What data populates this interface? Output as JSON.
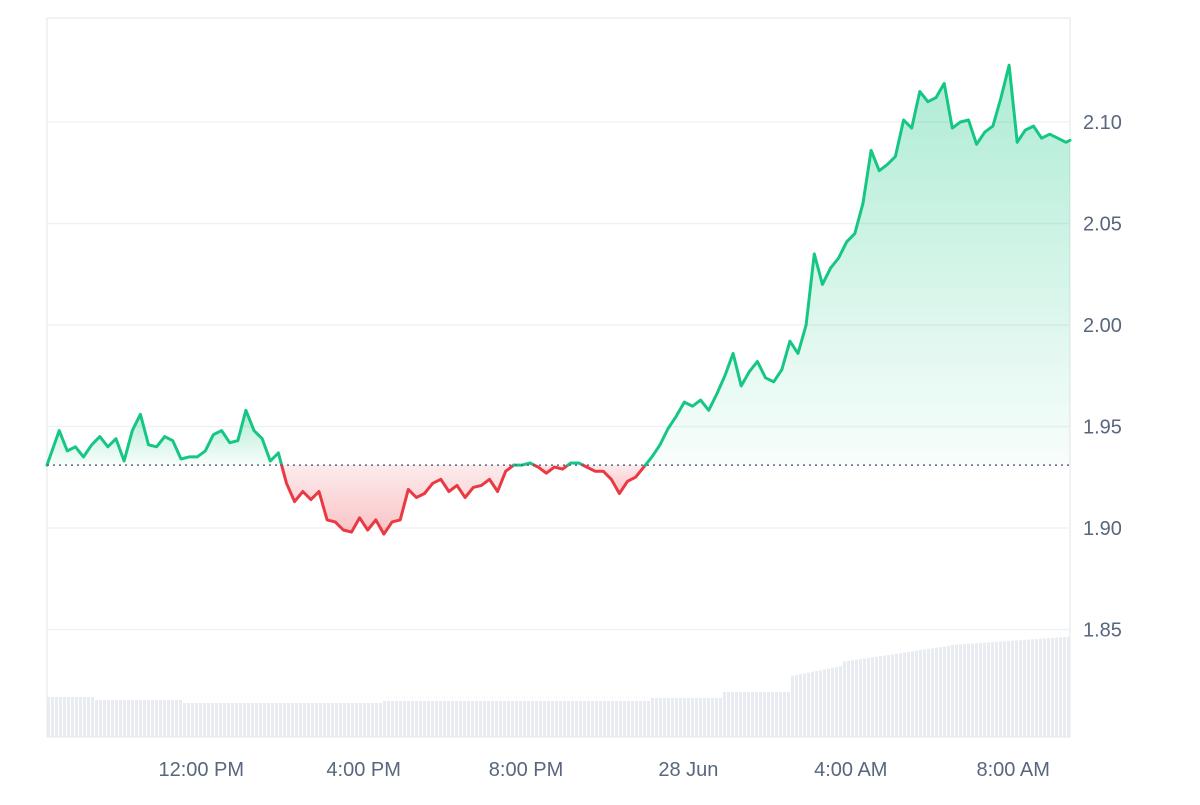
{
  "chart_data": {
    "type": "line",
    "title": "",
    "xlabel": "",
    "ylabel": "",
    "baseline": 1.931,
    "ylim": [
      1.8,
      2.15
    ],
    "y_ticks": [
      "2.10",
      "2.05",
      "2.00",
      "1.95",
      "1.90",
      "1.85"
    ],
    "y_tick_values": [
      2.1,
      2.05,
      2.0,
      1.95,
      1.9,
      1.85
    ],
    "x_ticks": [
      "12:00 PM",
      "4:00 PM",
      "8:00 PM",
      "28 Jun",
      "4:00 AM",
      "8:00 AM"
    ],
    "x_tick_hours": [
      12,
      16,
      20,
      24,
      28,
      32
    ],
    "x_range_hours": [
      8.2,
      33.4
    ],
    "series": [
      {
        "values": [
          [
            8.2,
            1.931
          ],
          [
            8.5,
            1.948
          ],
          [
            8.7,
            1.938
          ],
          [
            8.9,
            1.94
          ],
          [
            9.1,
            1.935
          ],
          [
            9.3,
            1.941
          ],
          [
            9.5,
            1.945
          ],
          [
            9.7,
            1.94
          ],
          [
            9.9,
            1.944
          ],
          [
            10.1,
            1.933
          ],
          [
            10.3,
            1.948
          ],
          [
            10.5,
            1.956
          ],
          [
            10.7,
            1.941
          ],
          [
            10.9,
            1.94
          ],
          [
            11.1,
            1.945
          ],
          [
            11.3,
            1.943
          ],
          [
            11.5,
            1.934
          ],
          [
            11.7,
            1.935
          ],
          [
            11.9,
            1.935
          ],
          [
            12.1,
            1.938
          ],
          [
            12.3,
            1.946
          ],
          [
            12.5,
            1.948
          ],
          [
            12.7,
            1.942
          ],
          [
            12.9,
            1.943
          ],
          [
            13.1,
            1.958
          ],
          [
            13.3,
            1.948
          ],
          [
            13.5,
            1.944
          ],
          [
            13.7,
            1.933
          ],
          [
            13.9,
            1.937
          ],
          [
            14.1,
            1.922
          ],
          [
            14.3,
            1.913
          ],
          [
            14.5,
            1.918
          ],
          [
            14.7,
            1.914
          ],
          [
            14.9,
            1.918
          ],
          [
            15.1,
            1.904
          ],
          [
            15.3,
            1.903
          ],
          [
            15.5,
            1.899
          ],
          [
            15.7,
            1.898
          ],
          [
            15.9,
            1.905
          ],
          [
            16.1,
            1.899
          ],
          [
            16.3,
            1.904
          ],
          [
            16.5,
            1.897
          ],
          [
            16.7,
            1.903
          ],
          [
            16.9,
            1.904
          ],
          [
            17.1,
            1.919
          ],
          [
            17.3,
            1.915
          ],
          [
            17.5,
            1.917
          ],
          [
            17.7,
            1.922
          ],
          [
            17.9,
            1.924
          ],
          [
            18.1,
            1.918
          ],
          [
            18.3,
            1.921
          ],
          [
            18.5,
            1.915
          ],
          [
            18.7,
            1.92
          ],
          [
            18.9,
            1.921
          ],
          [
            19.1,
            1.924
          ],
          [
            19.3,
            1.918
          ],
          [
            19.5,
            1.928
          ],
          [
            19.7,
            1.931
          ],
          [
            19.9,
            1.931
          ],
          [
            20.1,
            1.932
          ],
          [
            20.3,
            1.93
          ],
          [
            20.5,
            1.927
          ],
          [
            20.7,
            1.93
          ],
          [
            20.9,
            1.929
          ],
          [
            21.1,
            1.932
          ],
          [
            21.3,
            1.932
          ],
          [
            21.5,
            1.93
          ],
          [
            21.7,
            1.928
          ],
          [
            21.9,
            1.928
          ],
          [
            22.1,
            1.924
          ],
          [
            22.3,
            1.917
          ],
          [
            22.5,
            1.923
          ],
          [
            22.7,
            1.925
          ],
          [
            22.9,
            1.93
          ],
          [
            23.1,
            1.935
          ],
          [
            23.3,
            1.941
          ],
          [
            23.5,
            1.949
          ],
          [
            23.7,
            1.955
          ],
          [
            23.9,
            1.962
          ],
          [
            24.1,
            1.96
          ],
          [
            24.3,
            1.963
          ],
          [
            24.5,
            1.958
          ],
          [
            24.7,
            1.966
          ],
          [
            24.9,
            1.975
          ],
          [
            25.1,
            1.986
          ],
          [
            25.3,
            1.97
          ],
          [
            25.5,
            1.977
          ],
          [
            25.7,
            1.982
          ],
          [
            25.9,
            1.974
          ],
          [
            26.1,
            1.972
          ],
          [
            26.3,
            1.978
          ],
          [
            26.5,
            1.992
          ],
          [
            26.7,
            1.986
          ],
          [
            26.9,
            2.0
          ],
          [
            27.1,
            2.035
          ],
          [
            27.3,
            2.02
          ],
          [
            27.5,
            2.028
          ],
          [
            27.7,
            2.033
          ],
          [
            27.9,
            2.041
          ],
          [
            28.1,
            2.045
          ],
          [
            28.3,
            2.06
          ],
          [
            28.5,
            2.086
          ],
          [
            28.7,
            2.076
          ],
          [
            28.9,
            2.079
          ],
          [
            29.1,
            2.083
          ],
          [
            29.3,
            2.101
          ],
          [
            29.5,
            2.097
          ],
          [
            29.7,
            2.115
          ],
          [
            29.9,
            2.11
          ],
          [
            30.1,
            2.112
          ],
          [
            30.3,
            2.119
          ],
          [
            30.5,
            2.097
          ],
          [
            30.7,
            2.1
          ],
          [
            30.9,
            2.101
          ],
          [
            31.1,
            2.089
          ],
          [
            31.3,
            2.095
          ],
          [
            31.5,
            2.098
          ],
          [
            31.7,
            2.112
          ],
          [
            31.9,
            2.128
          ],
          [
            32.1,
            2.09
          ],
          [
            32.3,
            2.096
          ],
          [
            32.5,
            2.098
          ],
          [
            32.7,
            2.092
          ],
          [
            32.9,
            2.094
          ],
          [
            33.1,
            2.092
          ],
          [
            33.3,
            2.09
          ],
          [
            33.4,
            2.091
          ]
        ]
      }
    ],
    "colors": {
      "up": "#16c784",
      "down": "#ea3943",
      "grid": "#eff2f5",
      "volume": "#e8ebef",
      "axis_text": "#58667e"
    }
  }
}
